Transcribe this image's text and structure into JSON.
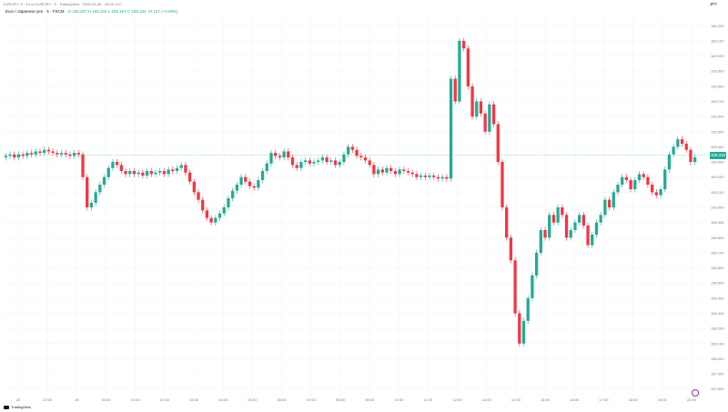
{
  "header": {
    "meta": "EUR/JPY, 5 · 1h vs EUR/JPY · 5 · TradingView · 2025-04-28 · 16:28 UTC",
    "symbol": "Euro / Japanese yen · 5 · FXCM",
    "ohlc": "O 159.207  H 159.334  L 159.167  C 159.334  +0.127 (+0.08%)",
    "currency": "JPY"
  },
  "current_price": "159.345",
  "footer": {
    "brand": "TradingView"
  },
  "chart_data": {
    "type": "candlestick",
    "title": "",
    "xlabel": "",
    "ylabel": "",
    "x_ticks": [
      "20",
      "22:00",
      "28",
      "00:00",
      "01:00",
      "02:00",
      "03:00",
      "04:00",
      "05:00",
      "06:00",
      "07:00",
      "08:00",
      "09:00",
      "10:00",
      "11:00",
      "12:00",
      "13:00",
      "14:00",
      "15:00",
      "16:00",
      "17:00",
      "18:00",
      "19:00",
      "20:00"
    ],
    "y_ticks": [
      "157.800",
      "157.900",
      "158.000",
      "158.100",
      "158.200",
      "158.300",
      "158.400",
      "158.500",
      "158.600",
      "158.700",
      "158.800",
      "158.900",
      "159.000",
      "159.100",
      "159.200",
      "159.300",
      "159.400",
      "159.500",
      "159.600",
      "159.700",
      "159.800",
      "159.900",
      "160.000",
      "160.100",
      "160.200"
    ],
    "ylim": [
      157.75,
      160.25
    ],
    "colors": {
      "up": "#22ab94",
      "down": "#f23645"
    },
    "close": [
      159.34,
      159.35,
      159.33,
      159.35,
      159.34,
      159.36,
      159.35,
      159.37,
      159.36,
      159.38,
      159.37,
      159.36,
      159.35,
      159.36,
      159.35,
      159.34,
      159.36,
      159.35,
      159.2,
      159.0,
      159.03,
      159.1,
      159.15,
      159.2,
      159.26,
      159.3,
      159.28,
      159.24,
      159.22,
      159.24,
      159.22,
      159.23,
      159.21,
      159.24,
      159.22,
      159.23,
      159.24,
      159.22,
      159.25,
      159.24,
      159.26,
      159.28,
      159.23,
      159.17,
      159.1,
      159.05,
      158.98,
      158.93,
      158.9,
      158.93,
      158.96,
      159.0,
      159.06,
      159.11,
      159.15,
      159.2,
      159.17,
      159.14,
      159.13,
      159.18,
      159.24,
      159.29,
      159.36,
      159.34,
      159.33,
      159.37,
      159.33,
      159.28,
      159.26,
      159.3,
      159.31,
      159.29,
      159.3,
      159.31,
      159.33,
      159.3,
      159.31,
      159.28,
      159.3,
      159.35,
      159.4,
      159.38,
      159.34,
      159.33,
      159.31,
      159.28,
      159.22,
      159.25,
      159.23,
      159.26,
      159.24,
      159.22,
      159.25,
      159.24,
      159.23,
      159.22,
      159.2,
      159.21,
      159.2,
      159.21,
      159.2,
      159.19,
      159.2,
      159.19,
      159.85,
      159.7,
      160.1,
      160.05,
      159.8,
      159.6,
      159.7,
      159.62,
      159.5,
      159.68,
      159.55,
      159.3,
      159.0,
      158.8,
      158.65,
      158.3,
      158.1,
      158.25,
      158.4,
      158.55,
      158.7,
      158.85,
      158.8,
      158.95,
      158.9,
      159.0,
      158.95,
      158.8,
      158.85,
      158.9,
      158.95,
      158.88,
      158.75,
      158.82,
      158.9,
      158.95,
      159.05,
      159.0,
      159.1,
      159.15,
      159.2,
      159.18,
      159.12,
      159.18,
      159.22,
      159.2,
      159.15,
      159.1,
      159.08,
      159.12,
      159.25,
      159.35,
      159.4,
      159.45,
      159.42,
      159.38,
      159.3,
      159.33
    ]
  }
}
